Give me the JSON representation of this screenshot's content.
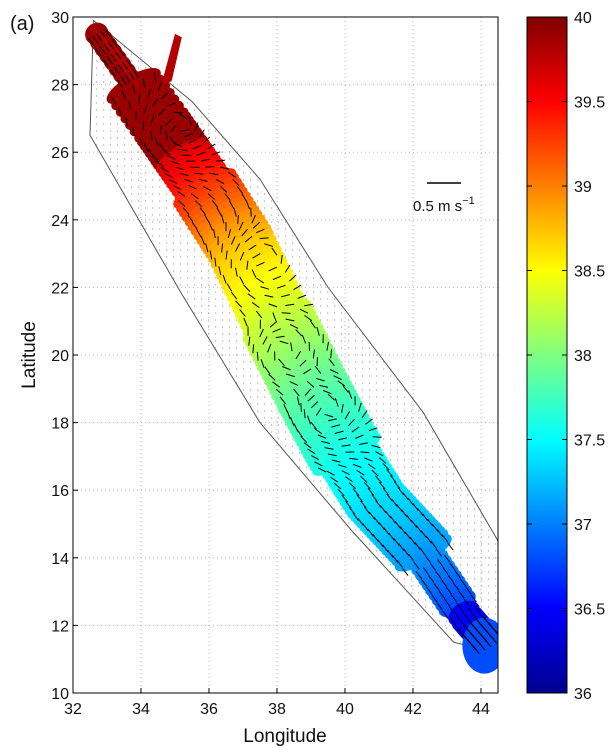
{
  "panel_label": "(a)",
  "chart_data": {
    "type": "heatmap",
    "xlabel": "Longitude",
    "ylabel": "Latitude",
    "xlim": [
      32,
      44.5
    ],
    "ylim": [
      10,
      30
    ],
    "xticks": [
      32,
      34,
      36,
      38,
      40,
      42,
      44
    ],
    "yticks": [
      10,
      12,
      14,
      16,
      18,
      20,
      22,
      24,
      26,
      28,
      30
    ],
    "grid": true,
    "colorbar": {
      "range": [
        36,
        40
      ],
      "ticks": [
        "36",
        "36.5",
        "37",
        "37.5",
        "38",
        "38.5",
        "39",
        "39.5",
        "40"
      ],
      "colormap": "jet"
    },
    "scale_arrow": {
      "magnitude": 0.5,
      "label": "0.5 m s",
      "exponent": "−1"
    },
    "domain_outline": [
      [
        32.6,
        29.9
      ],
      [
        35.5,
        27.5
      ],
      [
        37.5,
        25.2
      ],
      [
        39.5,
        22.0
      ],
      [
        42.3,
        18.3
      ],
      [
        44.5,
        14.5
      ],
      [
        44.5,
        11.2
      ],
      [
        43.2,
        11.5
      ],
      [
        40.2,
        14.8
      ],
      [
        37.5,
        18.0
      ],
      [
        35.2,
        21.8
      ],
      [
        32.5,
        26.5
      ]
    ],
    "basin_centerline": [
      [
        32.7,
        29.5
      ],
      [
        34.6,
        26.8
      ],
      [
        35.7,
        25.2
      ],
      [
        36.9,
        23.3
      ],
      [
        38.0,
        21.0
      ],
      [
        39.0,
        19.0
      ],
      [
        39.9,
        17.3
      ],
      [
        40.9,
        15.7
      ],
      [
        42.2,
        14.3
      ],
      [
        43.6,
        12.2
      ],
      [
        44.2,
        11.5
      ]
    ],
    "eddy_centers": [
      [
        35.0,
        26.6
      ],
      [
        37.5,
        22.6
      ],
      [
        38.1,
        20.0
      ],
      [
        39.3,
        18.2
      ]
    ]
  }
}
